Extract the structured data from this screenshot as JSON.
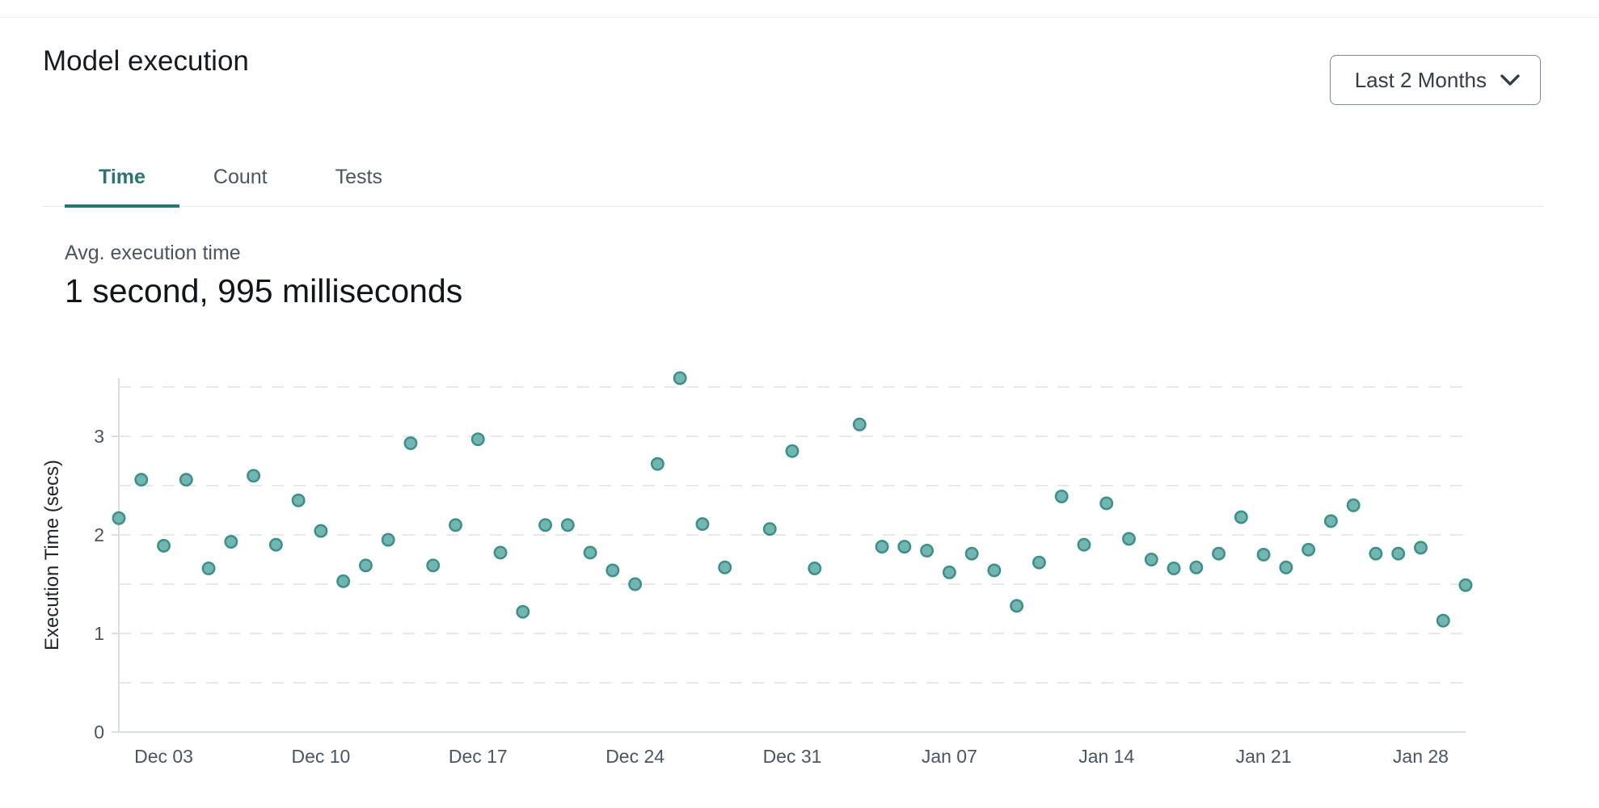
{
  "header": {
    "title": "Model execution",
    "range_selector": {
      "label": "Last 2 Months",
      "icon": "chevron-down-icon"
    }
  },
  "tabs": [
    {
      "label": "Time",
      "active": true
    },
    {
      "label": "Count",
      "active": false
    },
    {
      "label": "Tests",
      "active": false
    }
  ],
  "metric": {
    "label": "Avg. execution time",
    "value": "1 second, 995 milliseconds"
  },
  "colors": {
    "accent_teal": "#2b7471",
    "point_fill": "#72b6b1",
    "point_stroke": "#3e8e89",
    "grid": "#e6e9ec",
    "axis": "#d9dee3",
    "tick_text": "#4a5560"
  },
  "chart_data": {
    "type": "scatter",
    "title": "",
    "xlabel": "",
    "ylabel": "Execution Time (secs)",
    "ylim": [
      0,
      3.59
    ],
    "y_ticks": [
      0,
      1,
      2,
      3
    ],
    "grid": "dashed horizontal lines every 0.5",
    "legend": "none",
    "x_day_range": [
      0,
      60
    ],
    "x_ticks": [
      {
        "day": 2,
        "label": "Dec 03"
      },
      {
        "day": 9,
        "label": "Dec 10"
      },
      {
        "day": 16,
        "label": "Dec 17"
      },
      {
        "day": 23,
        "label": "Dec 24"
      },
      {
        "day": 30,
        "label": "Dec 31"
      },
      {
        "day": 37,
        "label": "Jan 07"
      },
      {
        "day": 44,
        "label": "Jan 14"
      },
      {
        "day": 51,
        "label": "Jan 21"
      },
      {
        "day": 58,
        "label": "Jan 28"
      }
    ],
    "points": [
      {
        "day": 0,
        "date": "Dec 01",
        "value": 2.17
      },
      {
        "day": 1,
        "date": "Dec 02",
        "value": 2.56
      },
      {
        "day": 2,
        "date": "Dec 03",
        "value": 1.89
      },
      {
        "day": 3,
        "date": "Dec 04",
        "value": 2.56
      },
      {
        "day": 4,
        "date": "Dec 05",
        "value": 1.66
      },
      {
        "day": 5,
        "date": "Dec 06",
        "value": 1.93
      },
      {
        "day": 6,
        "date": "Dec 07",
        "value": 2.6
      },
      {
        "day": 7,
        "date": "Dec 08",
        "value": 1.9
      },
      {
        "day": 8,
        "date": "Dec 09",
        "value": 2.35
      },
      {
        "day": 9,
        "date": "Dec 10",
        "value": 2.04
      },
      {
        "day": 10,
        "date": "Dec 11",
        "value": 1.53
      },
      {
        "day": 11,
        "date": "Dec 12",
        "value": 1.69
      },
      {
        "day": 12,
        "date": "Dec 13",
        "value": 1.95
      },
      {
        "day": 13,
        "date": "Dec 14",
        "value": 2.93
      },
      {
        "day": 14,
        "date": "Dec 15",
        "value": 1.69
      },
      {
        "day": 15,
        "date": "Dec 16",
        "value": 2.1
      },
      {
        "day": 16,
        "date": "Dec 17",
        "value": 2.97
      },
      {
        "day": 17,
        "date": "Dec 18",
        "value": 1.82
      },
      {
        "day": 18,
        "date": "Dec 19",
        "value": 1.22
      },
      {
        "day": 19,
        "date": "Dec 20",
        "value": 2.1
      },
      {
        "day": 20,
        "date": "Dec 21",
        "value": 2.1
      },
      {
        "day": 21,
        "date": "Dec 22",
        "value": 1.82
      },
      {
        "day": 22,
        "date": "Dec 23",
        "value": 1.64
      },
      {
        "day": 23,
        "date": "Dec 24",
        "value": 1.5
      },
      {
        "day": 24,
        "date": "Dec 25",
        "value": 2.72
      },
      {
        "day": 25,
        "date": "Dec 26",
        "value": 3.59
      },
      {
        "day": 26,
        "date": "Dec 27",
        "value": 2.11
      },
      {
        "day": 27,
        "date": "Dec 28",
        "value": 1.67
      },
      {
        "day": 29,
        "date": "Dec 30",
        "value": 2.06
      },
      {
        "day": 30,
        "date": "Dec 31",
        "value": 2.85
      },
      {
        "day": 31,
        "date": "Jan 01",
        "value": 1.66
      },
      {
        "day": 33,
        "date": "Jan 03",
        "value": 3.12
      },
      {
        "day": 34,
        "date": "Jan 04",
        "value": 1.88
      },
      {
        "day": 35,
        "date": "Jan 05",
        "value": 1.88
      },
      {
        "day": 36,
        "date": "Jan 06",
        "value": 1.84
      },
      {
        "day": 37,
        "date": "Jan 07",
        "value": 1.62
      },
      {
        "day": 38,
        "date": "Jan 08",
        "value": 1.81
      },
      {
        "day": 39,
        "date": "Jan 09",
        "value": 1.64
      },
      {
        "day": 40,
        "date": "Jan 10",
        "value": 1.28
      },
      {
        "day": 41,
        "date": "Jan 11",
        "value": 1.72
      },
      {
        "day": 42,
        "date": "Jan 12",
        "value": 2.39
      },
      {
        "day": 43,
        "date": "Jan 13",
        "value": 1.9
      },
      {
        "day": 44,
        "date": "Jan 14",
        "value": 2.32
      },
      {
        "day": 45,
        "date": "Jan 15",
        "value": 1.96
      },
      {
        "day": 46,
        "date": "Jan 16",
        "value": 1.75
      },
      {
        "day": 47,
        "date": "Jan 17",
        "value": 1.66
      },
      {
        "day": 48,
        "date": "Jan 18",
        "value": 1.67
      },
      {
        "day": 49,
        "date": "Jan 19",
        "value": 1.81
      },
      {
        "day": 50,
        "date": "Jan 20",
        "value": 2.18
      },
      {
        "day": 51,
        "date": "Jan 21",
        "value": 1.8
      },
      {
        "day": 52,
        "date": "Jan 22",
        "value": 1.67
      },
      {
        "day": 53,
        "date": "Jan 23",
        "value": 1.85
      },
      {
        "day": 54,
        "date": "Jan 24",
        "value": 2.14
      },
      {
        "day": 55,
        "date": "Jan 25",
        "value": 2.3
      },
      {
        "day": 56,
        "date": "Jan 26",
        "value": 1.81
      },
      {
        "day": 57,
        "date": "Jan 27",
        "value": 1.81
      },
      {
        "day": 58,
        "date": "Jan 28",
        "value": 1.87
      },
      {
        "day": 59,
        "date": "Jan 29",
        "value": 1.13
      },
      {
        "day": 60,
        "date": "Jan 30",
        "value": 1.49
      }
    ]
  }
}
